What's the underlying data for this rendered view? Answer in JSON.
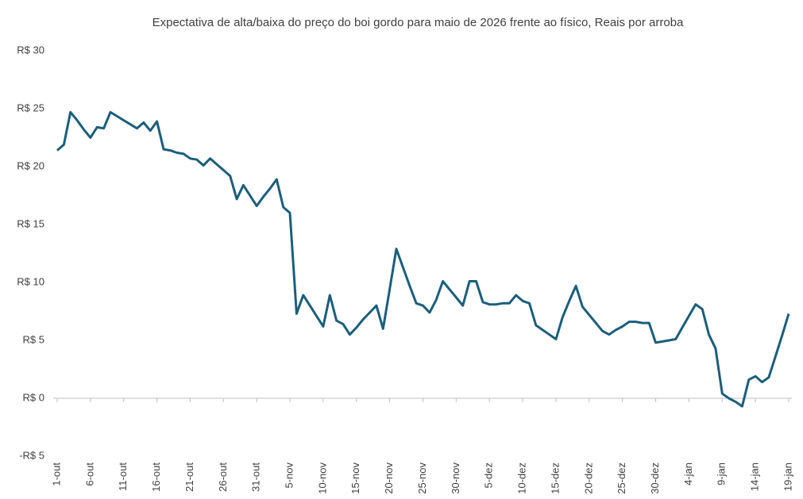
{
  "chart_data": {
    "type": "line",
    "title": "Expectativa de alta/baixa do preço do boi gordo para maio de 2026 frente ao físico, Reais por arroba",
    "categories": [
      "1-out",
      null,
      null,
      null,
      null,
      "6-out",
      null,
      null,
      null,
      null,
      "11-out",
      null,
      null,
      null,
      null,
      "16-out",
      null,
      null,
      null,
      null,
      "21-out",
      null,
      null,
      null,
      null,
      "26-out",
      null,
      null,
      null,
      null,
      "31-out",
      null,
      null,
      null,
      null,
      "5-nov",
      null,
      null,
      null,
      null,
      "10-nov",
      null,
      null,
      null,
      null,
      "15-nov",
      null,
      null,
      null,
      null,
      "20-nov",
      null,
      null,
      null,
      null,
      "25-nov",
      null,
      null,
      null,
      null,
      "30-nov",
      null,
      null,
      null,
      null,
      "5-dez",
      null,
      null,
      null,
      null,
      "10-dez",
      null,
      null,
      null,
      null,
      "15-dez",
      null,
      null,
      null,
      null,
      "20-dez",
      null,
      null,
      null,
      null,
      "25-dez",
      null,
      null,
      null,
      null,
      "30-dez",
      null,
      null,
      null,
      null,
      "4-jan",
      null,
      null,
      null,
      null,
      "9-jan",
      null,
      null,
      null,
      null,
      "14-jan",
      null,
      null,
      null,
      null,
      "19-jan"
    ],
    "values": [
      21.4,
      21.9,
      24.7,
      24.0,
      23.2,
      22.5,
      23.4,
      23.3,
      24.7,
      24.35,
      24.0,
      23.65,
      23.3,
      23.8,
      23.1,
      23.9,
      21.5,
      21.4,
      21.2,
      21.1,
      20.7,
      20.6,
      20.1,
      20.7,
      20.2,
      19.7,
      19.2,
      17.2,
      18.4,
      17.5,
      16.6,
      17.4,
      18.1,
      18.9,
      16.5,
      16.0,
      7.3,
      8.9,
      8.0,
      7.1,
      6.2,
      8.9,
      6.7,
      6.4,
      5.5,
      6.1,
      6.8,
      7.4,
      8.0,
      6.0,
      9.4,
      12.9,
      11.3,
      9.7,
      8.2,
      8.0,
      7.4,
      8.5,
      10.1,
      9.4,
      8.7,
      8.0,
      10.1,
      10.1,
      8.3,
      8.1,
      8.1,
      8.2,
      8.2,
      8.9,
      8.4,
      8.2,
      6.3,
      5.9,
      5.5,
      5.1,
      7.0,
      8.4,
      9.7,
      7.9,
      7.2,
      6.5,
      5.8,
      5.5,
      5.9,
      6.2,
      6.6,
      6.6,
      6.5,
      6.5,
      4.8,
      4.9,
      5.0,
      5.1,
      6.1,
      7.1,
      8.1,
      7.7,
      5.5,
      4.3,
      0.4,
      0.0,
      -0.3,
      -0.7,
      1.6,
      1.9,
      1.4,
      1.8,
      3.6,
      5.4,
      7.3
    ],
    "color": "#1b5e7b",
    "ylim": [
      -5,
      30
    ],
    "yticks": [
      {
        "value": -5,
        "label": "-R$ 5"
      },
      {
        "value": 0,
        "label": "R$ 0"
      },
      {
        "value": 5,
        "label": "R$ 5"
      },
      {
        "value": 10,
        "label": "R$ 10"
      },
      {
        "value": 15,
        "label": "R$ 15"
      },
      {
        "value": 20,
        "label": "R$ 20"
      },
      {
        "value": 25,
        "label": "R$ 25"
      },
      {
        "value": 30,
        "label": "R$ 30"
      }
    ],
    "grid": false
  }
}
